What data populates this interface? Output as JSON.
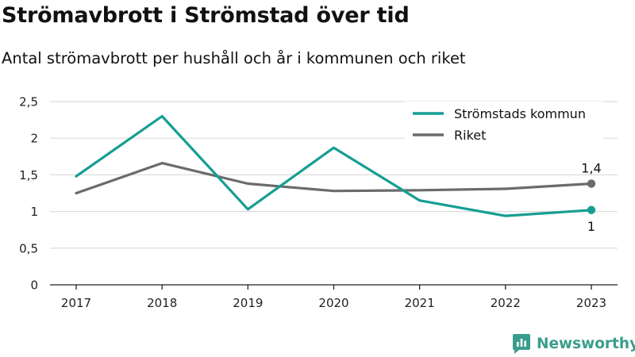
{
  "chart_data": {
    "type": "line",
    "title": "Strömavbrott i Strömstad över tid",
    "subtitle": "Antal strömavbrott per hushåll och år i kommunen och riket",
    "x": [
      "2017",
      "2018",
      "2019",
      "2020",
      "2021",
      "2022",
      "2023"
    ],
    "yticks": [
      "0",
      "0,5",
      "1",
      "1,5",
      "2",
      "2,5"
    ],
    "ylim": [
      0,
      2.5
    ],
    "grid": true,
    "legend_position": "top-right",
    "series": [
      {
        "name": "Strömstads kommun",
        "color": "#169e93",
        "values": [
          1.48,
          2.3,
          1.03,
          1.87,
          1.15,
          0.94,
          1.02
        ],
        "end_label": "1"
      },
      {
        "name": "Riket",
        "color": "#6b6b6e",
        "values": [
          1.25,
          1.66,
          1.38,
          1.28,
          1.29,
          1.31,
          1.38
        ],
        "end_label": "1,4"
      }
    ]
  },
  "brand": {
    "name": "Newsworthy",
    "color": "#3a9d8b",
    "icon": "newsworthy-logo-icon"
  }
}
